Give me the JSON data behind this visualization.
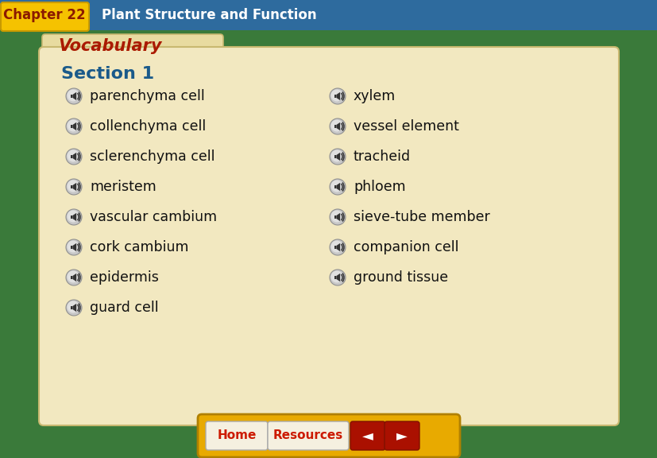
{
  "title": "Chapter 22",
  "subtitle": "Plant Structure and Function",
  "vocab_title": "Vocabulary",
  "section_title": "Section 1",
  "left_items": [
    "parenchyma cell",
    "collenchyma cell",
    "sclerenchyma cell",
    "meristem",
    "vascular cambium",
    "cork cambium",
    "epidermis",
    "guard cell"
  ],
  "right_items": [
    "xylem",
    "vessel element",
    "tracheid",
    "phloem",
    "sieve-tube member",
    "companion cell",
    "ground tissue"
  ],
  "bg_color": "#3a7a3a",
  "header_bg": "#2e6b9e",
  "chapter_tag_color": "#f5c200",
  "chapter_tag_edge": "#c89a00",
  "chapter_title_color": "#8b1a00",
  "subtitle_color": "#ffffff",
  "folder_bg": "#f2e8c0",
  "folder_tab_bg": "#e8dba0",
  "folder_edge": "#c8b870",
  "vocab_color": "#aa1a00",
  "section_color": "#1a5a8a",
  "item_color": "#111111",
  "bottom_bar_color": "#e8aa00",
  "bottom_bar_edge": "#b08000",
  "home_btn_bg": "#f5f0e0",
  "home_btn_edge": "#aaaaaa",
  "home_btn_color": "#cc1a00",
  "resources_btn_bg": "#f5f0e0",
  "resources_btn_edge": "#aaaaaa",
  "resources_btn_color": "#cc1a00",
  "arrow_btn_color": "#aa1000",
  "arrow_text_color": "#ffffff"
}
